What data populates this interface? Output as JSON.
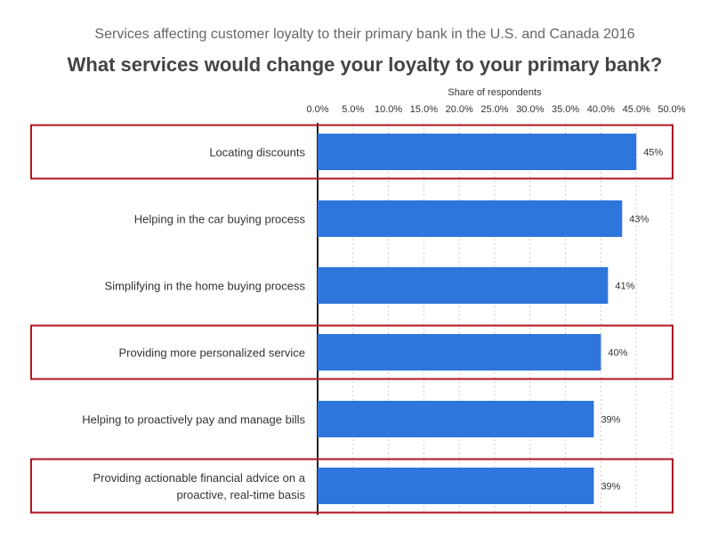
{
  "chart_data": {
    "type": "bar",
    "orientation": "horizontal",
    "subtitle": "Services affecting customer loyalty to their primary bank in the U.S. and Canada 2016",
    "title": "What services would change your loyalty to your primary bank?",
    "xlabel": "Share of respondents",
    "ylabel": "",
    "xlim": [
      0,
      50
    ],
    "x_tick_labels": [
      "0.0%",
      "5.0%",
      "10.0%",
      "15.0%",
      "20.0%",
      "25.0%",
      "30.0%",
      "35.0%",
      "40.0%",
      "45.0%",
      "50.0%"
    ],
    "x_tick_values": [
      0,
      5,
      10,
      15,
      20,
      25,
      30,
      35,
      40,
      45,
      50
    ],
    "axis_position": "top",
    "grid": "vertical dashed",
    "categories": [
      "Locating discounts",
      "Helping in the car buying process",
      "Simplifying in the home buying process",
      "Providing more personalized service",
      "Helping to proactively pay and manage bills",
      "Providing actionable financial advice on a proactive, real-time basis"
    ],
    "category_lines": [
      [
        "Locating discounts"
      ],
      [
        "Helping in the car buying process"
      ],
      [
        "Simplifying in the home buying process"
      ],
      [
        "Providing more personalized service"
      ],
      [
        "Helping to proactively pay and manage bills"
      ],
      [
        "Providing actionable financial advice on a",
        "proactive, real-time basis"
      ]
    ],
    "values": [
      45,
      43,
      41,
      40,
      39,
      39
    ],
    "data_labels": [
      "45%",
      "43%",
      "41%",
      "40%",
      "39%",
      "39%"
    ],
    "highlighted": [
      true,
      false,
      false,
      true,
      false,
      true
    ],
    "colors": {
      "bar": "#2e75dc",
      "highlight_box": "#b0151f",
      "grid": "#cccccc",
      "axis": "#222222"
    }
  }
}
